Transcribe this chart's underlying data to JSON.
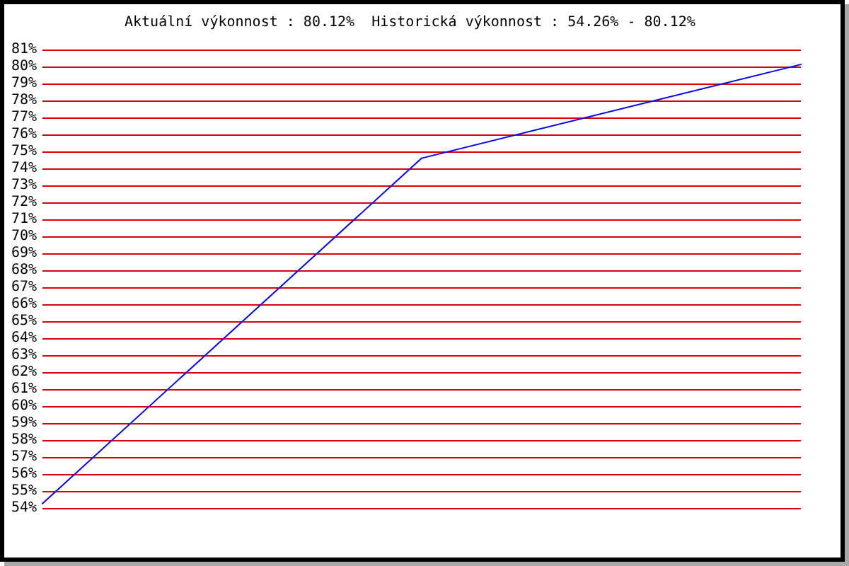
{
  "chart_data": {
    "type": "line",
    "title": "Aktuální výkonnost : 80.12%  Historická výkonnost : 54.26% - 80.12%",
    "categories": [
      null,
      null,
      null
    ],
    "series": [
      {
        "color": "#0000ff",
        "values": [
          54.26,
          74.6,
          80.12
        ]
      }
    ],
    "ylim": [
      54,
      81
    ],
    "yticks": [
      {
        "value": 54,
        "label": "54%"
      },
      {
        "value": 55,
        "label": "55%"
      },
      {
        "value": 56,
        "label": "56%"
      },
      {
        "value": 57,
        "label": "57%"
      },
      {
        "value": 58,
        "label": "58%"
      },
      {
        "value": 59,
        "label": "59%"
      },
      {
        "value": 60,
        "label": "60%"
      },
      {
        "value": 61,
        "label": "61%"
      },
      {
        "value": 62,
        "label": "62%"
      },
      {
        "value": 63,
        "label": "63%"
      },
      {
        "value": 64,
        "label": "64%"
      },
      {
        "value": 65,
        "label": "65%"
      },
      {
        "value": 66,
        "label": "66%"
      },
      {
        "value": 67,
        "label": "67%"
      },
      {
        "value": 68,
        "label": "68%"
      },
      {
        "value": 69,
        "label": "69%"
      },
      {
        "value": 70,
        "label": "70%"
      },
      {
        "value": 71,
        "label": "71%"
      },
      {
        "value": 72,
        "label": "72%"
      },
      {
        "value": 73,
        "label": "73%"
      },
      {
        "value": 74,
        "label": "74%"
      },
      {
        "value": 75,
        "label": "75%"
      },
      {
        "value": 76,
        "label": "76%"
      },
      {
        "value": 77,
        "label": "77%"
      },
      {
        "value": 78,
        "label": "78%"
      },
      {
        "value": 79,
        "label": "79%"
      },
      {
        "value": 80,
        "label": "80%"
      },
      {
        "value": 81,
        "label": "81%"
      }
    ],
    "grid": "y",
    "marker": "none",
    "line_style": "solid"
  }
}
